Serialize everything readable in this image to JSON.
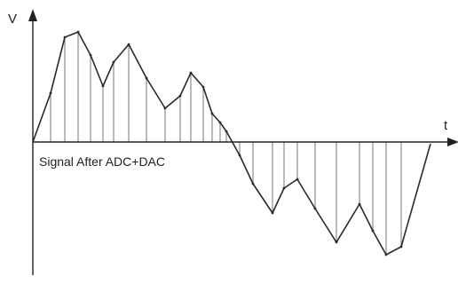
{
  "diagram": {
    "y_axis_label": "V",
    "x_axis_label": "t",
    "caption": "Signal After ADC+DAC",
    "signal_color": "#2a2a2a",
    "axis_color": "#222222",
    "sample_line_color": "#777777"
  }
}
